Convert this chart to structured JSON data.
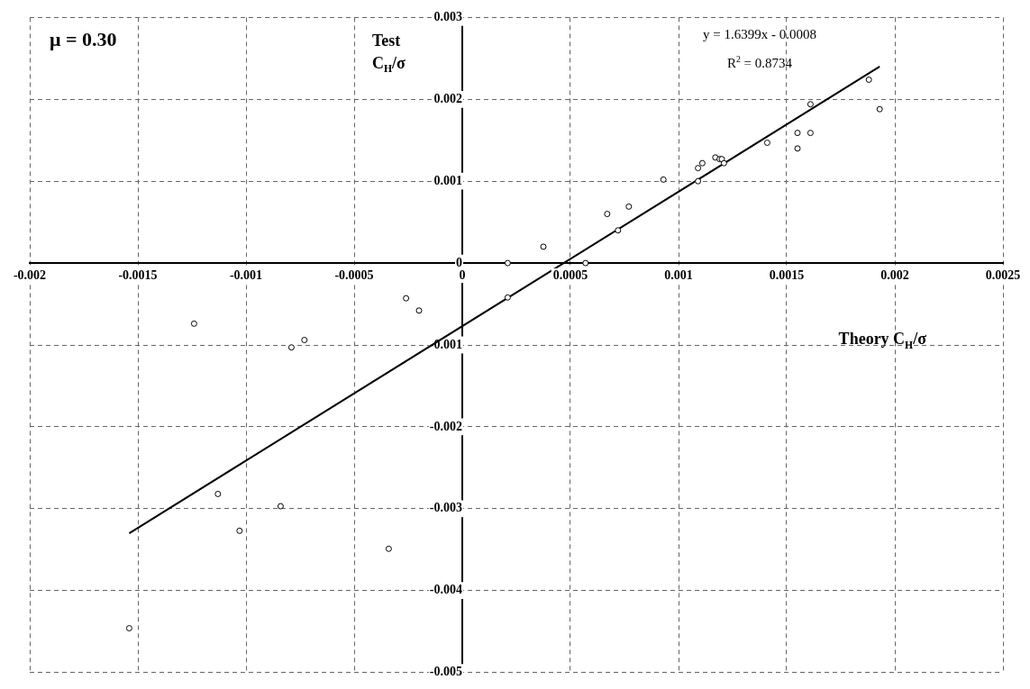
{
  "chart_data": {
    "type": "scatter",
    "xlabel": "Theory C$_{H}$/σ",
    "ylabel": "Test\nC$_{H}$/σ",
    "annotations": [
      "μ = 0.30",
      "y = 1.6399x - 0.0008",
      "R$^{2}$ = 0.8734"
    ],
    "xlim": [
      -0.002,
      0.0025
    ],
    "xticks": [
      -0.002,
      -0.0015,
      -0.001,
      -0.0005,
      0,
      0.0005,
      0.001,
      0.0015,
      0.002,
      0.0025
    ],
    "ylim": [
      -0.005,
      0.003
    ],
    "yticks": [
      -0.005,
      -0.004,
      -0.003,
      -0.002,
      -0.001,
      0,
      0.001,
      0.002,
      0.003
    ],
    "grid": true,
    "legend": false,
    "marker": "circle",
    "series": [
      {
        "color": "#000000",
        "x": [
          0.00021,
          0.000375,
          0.00057,
          0.00067,
          0.00072,
          0.00077,
          0.00093,
          0.00109,
          0.00109,
          0.00111,
          0.00117,
          0.00119,
          0.0012,
          0.00121,
          0.00141,
          0.00155,
          0.00155,
          0.00161,
          0.00161,
          0.00188,
          0.00193,
          0.00021,
          -0.00026,
          -0.0002,
          -0.00124,
          -0.00079,
          -0.00073,
          -0.00113,
          -0.00103,
          -0.00084,
          -0.00034,
          -0.00154
        ],
        "values": [
          0,
          0.0002,
          0,
          0.0006,
          0.0004,
          0.00069,
          0.00102,
          0.001,
          0.00116,
          0.00122,
          0.00129,
          0.00127,
          0.00127,
          0.00122,
          0.00147,
          0.0014,
          0.00159,
          0.00194,
          0.00159,
          0.00224,
          0.00188,
          -0.00042,
          -0.00043,
          -0.00058,
          -0.00074,
          -0.00103,
          -0.00094,
          -0.00282,
          -0.00327,
          -0.00297,
          -0.00349,
          -0.00446
        ]
      },
      {
        "type": "line",
        "marker": "none",
        "color": "#000000",
        "x": [
          -0.00154,
          0.00193
        ],
        "values": [
          -0.0033,
          0.0024
        ]
      }
    ]
  }
}
